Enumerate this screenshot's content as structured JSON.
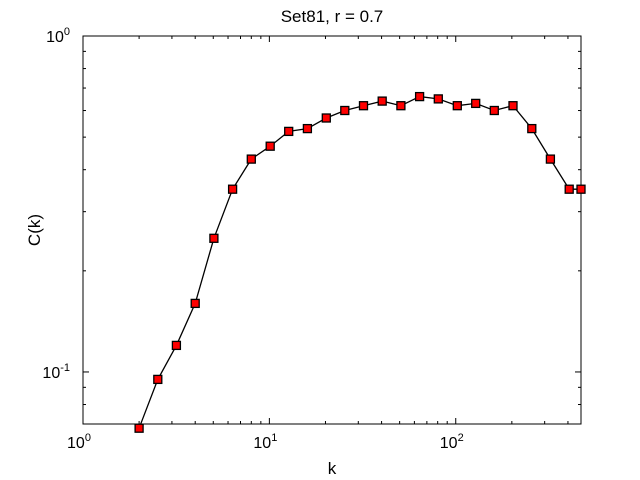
{
  "chart_data": {
    "type": "line",
    "title": "Set81, r = 0.7",
    "xlabel": "k",
    "ylabel": "C(k)",
    "x_scale": "log",
    "y_scale": "log",
    "xlim": [
      1,
      470
    ],
    "ylim": [
      0.07,
      1
    ],
    "grid": false,
    "x_ticks": [
      {
        "value": 1,
        "base": "10",
        "exp": "0"
      },
      {
        "value": 10,
        "base": "10",
        "exp": "1"
      },
      {
        "value": 100,
        "base": "10",
        "exp": "2"
      }
    ],
    "y_ticks": [
      {
        "value": 0.1,
        "base": "10",
        "exp": "-1"
      },
      {
        "value": 1,
        "base": "10",
        "exp": "0"
      }
    ],
    "series": [
      {
        "color": "#000000",
        "marker": "square",
        "marker_fill": "#ff0000",
        "x": [
          2.0,
          2.52,
          3.17,
          4.0,
          5.04,
          6.35,
          8.0,
          10.1,
          12.7,
          16.0,
          20.2,
          25.4,
          32.0,
          40.3,
          50.8,
          64.0,
          80.6,
          102,
          128,
          161,
          203,
          256,
          322,
          406,
          470
        ],
        "y": [
          0.068,
          0.095,
          0.12,
          0.16,
          0.25,
          0.35,
          0.43,
          0.47,
          0.52,
          0.53,
          0.57,
          0.6,
          0.62,
          0.64,
          0.62,
          0.66,
          0.65,
          0.62,
          0.63,
          0.6,
          0.62,
          0.53,
          0.43,
          0.35,
          0.35
        ]
      }
    ]
  }
}
